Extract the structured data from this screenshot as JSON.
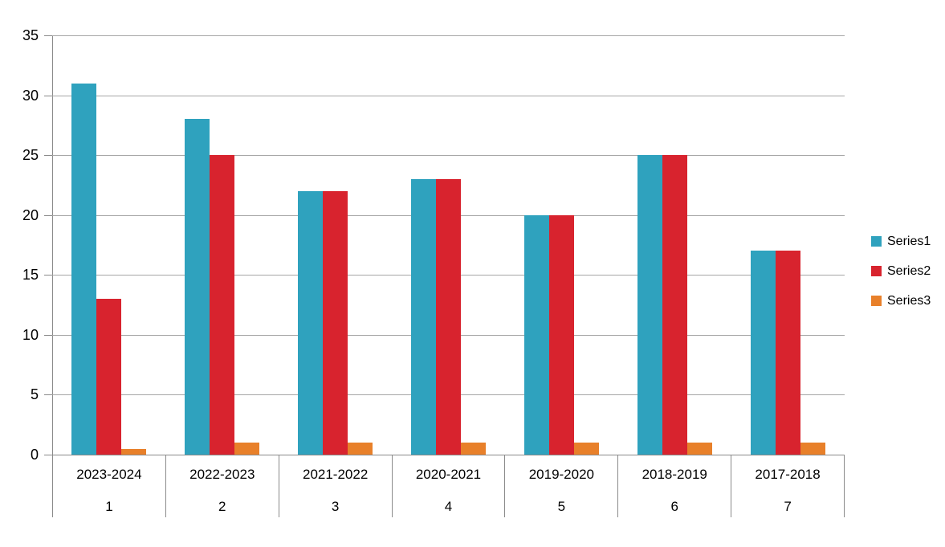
{
  "chart_data": {
    "type": "bar",
    "title": "",
    "categories": [
      {
        "label": "2023-2024",
        "index": "1"
      },
      {
        "label": "2022-2023",
        "index": "2"
      },
      {
        "label": "2021-2022",
        "index": "3"
      },
      {
        "label": "2020-2021",
        "index": "4"
      },
      {
        "label": "2019-2020",
        "index": "5"
      },
      {
        "label": "2018-2019",
        "index": "6"
      },
      {
        "label": "2017-2018",
        "index": "7"
      }
    ],
    "series": [
      {
        "name": "Series1",
        "color": "#2fa2be",
        "values": [
          31,
          28,
          22,
          23,
          20,
          25,
          17
        ]
      },
      {
        "name": "Series2",
        "color": "#d8232e",
        "values": [
          13,
          25,
          22,
          23,
          20,
          25,
          17
        ]
      },
      {
        "name": "Series3",
        "color": "#e8802a",
        "values": [
          0.5,
          1,
          1,
          1,
          1,
          1,
          1
        ]
      }
    ],
    "y_axis": {
      "min": 0,
      "max": 35,
      "tick_step": 5,
      "ticks": [
        0,
        5,
        10,
        15,
        20,
        25,
        30,
        35
      ]
    },
    "x_axis": {
      "row1": [
        "2023-2024",
        "2022-2023",
        "2021-2022",
        "2020-2021",
        "2019-2020",
        "2018-2019",
        "2017-2018"
      ],
      "row2": [
        "1",
        "2",
        "3",
        "4",
        "5",
        "6",
        "7"
      ]
    },
    "legend": {
      "position": "right",
      "entries": [
        "Series1",
        "Series2",
        "Series3"
      ]
    },
    "grid": true,
    "colors": {
      "series1": "#2fa2be",
      "series2": "#d8232e",
      "series3": "#e8802a",
      "gridline": "#a6a6a6",
      "axis_line": "#8a8a8a",
      "text": "#000000",
      "background": "#ffffff"
    }
  }
}
